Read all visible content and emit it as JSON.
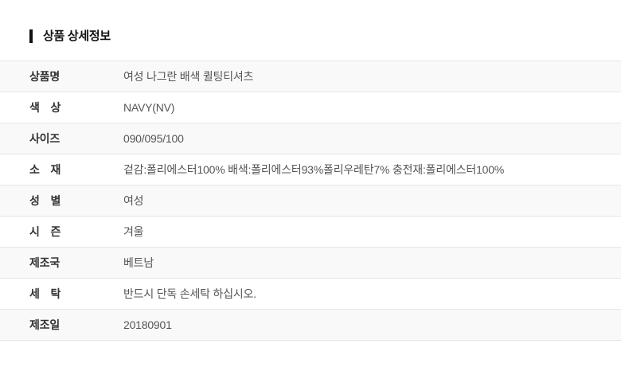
{
  "page": {
    "title": "상품 상세정보"
  },
  "table": {
    "rows": [
      {
        "label": "상품명",
        "value": "여성 나그란 배색 퀼팅티셔츠"
      },
      {
        "label": "색　상",
        "value": "NAVY(NV)"
      },
      {
        "label": "사이즈",
        "value": "090/095/100"
      },
      {
        "label": "소　재",
        "value": "겉감:폴리에스터100% 배색:폴리에스터93%폴리우레탄7% 충전재:폴리에스터100%"
      },
      {
        "label": "성　별",
        "value": "여성"
      },
      {
        "label": "시　즌",
        "value": "겨울"
      },
      {
        "label": "제조국",
        "value": "베트남"
      },
      {
        "label": "세　탁",
        "value": "반드시 단독 손세탁 하십시오."
      },
      {
        "label": "제조일",
        "value": "20180901"
      }
    ]
  },
  "colors": {
    "title_text": "#111111",
    "label_text": "#333333",
    "value_text": "#555555",
    "divider": "#e6e6e6",
    "stripe_row_bg": "#f9f9f9",
    "page_bg": "#ffffff"
  }
}
